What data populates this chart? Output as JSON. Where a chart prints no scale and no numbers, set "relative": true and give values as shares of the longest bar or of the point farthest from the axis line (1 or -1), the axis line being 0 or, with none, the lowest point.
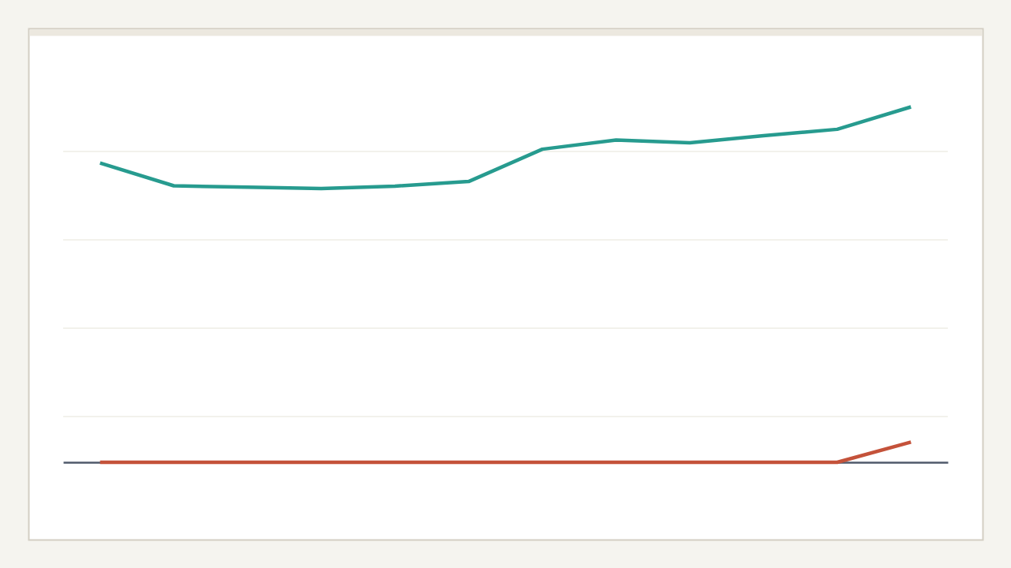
{
  "chart_data": {
    "type": "line",
    "relative": true,
    "categories": [
      null,
      null,
      null,
      null,
      null,
      null,
      null,
      null,
      null,
      null,
      null,
      null
    ],
    "series": [
      {
        "color": "#279b8f",
        "values": [
          0.842,
          0.778,
          0.774,
          0.77,
          0.777,
          0.79,
          0.881,
          0.907,
          0.899,
          0.919,
          0.937,
          1
        ]
      },
      {
        "color": "#c4523a",
        "values": [
          0,
          0,
          0,
          0,
          0,
          0,
          0,
          0,
          0,
          0,
          0,
          0.057
        ]
      }
    ],
    "grid": "y"
  }
}
